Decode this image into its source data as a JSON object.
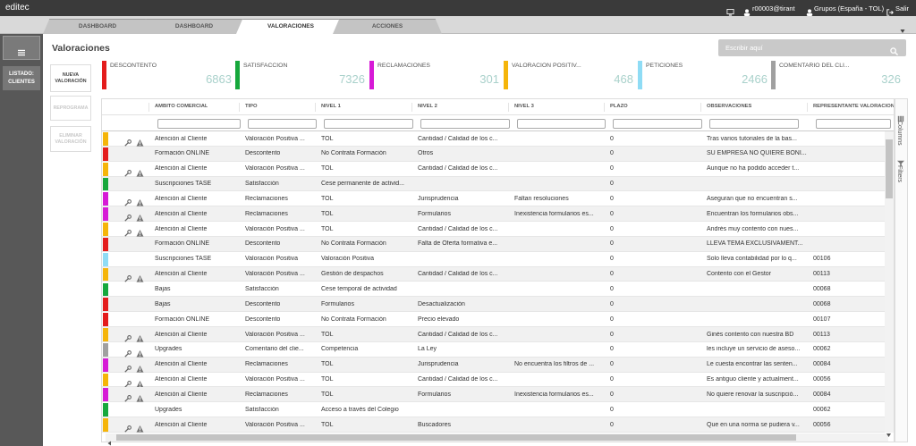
{
  "topbar": {
    "brand": "editec",
    "user": "r00003@tirant",
    "group": "Grupos (España - TOL)",
    "logout": "Salir"
  },
  "tabs": [
    {
      "label": "DASHBOARD",
      "active": false
    },
    {
      "label": "DASHBOARD",
      "active": false
    },
    {
      "label": "VALORACIONES",
      "active": true
    },
    {
      "label": "ACCIONES",
      "active": false
    }
  ],
  "sidebar": {
    "listado": "LISTADO: CLIENTES"
  },
  "page": {
    "title": "Valoraciones",
    "search_placeholder": "Escribir aquí"
  },
  "buttons": [
    {
      "label": "NUEVA VALORACIÓN",
      "enabled": true
    },
    {
      "label": "REPROGRAMA",
      "enabled": false
    },
    {
      "label": "ELIMINAR VALORACIÓN",
      "enabled": false
    }
  ],
  "cards": [
    {
      "label": "DESCONTENTO",
      "value": 6863,
      "color": "#e41c1c"
    },
    {
      "label": "SATISFACCIÓN",
      "value": 7326,
      "color": "#16a83c"
    },
    {
      "label": "RECLAMACIONES",
      "value": 301,
      "color": "#d61ad6"
    },
    {
      "label": "VALORACIÓN POSITIV...",
      "value": 468,
      "color": "#f5b50a"
    },
    {
      "label": "PETICIONES",
      "value": 2466,
      "color": "#8fdcf5"
    },
    {
      "label": "COMENTARIO DEL CLI...",
      "value": 326,
      "color": "#a0a0a0"
    }
  ],
  "table": {
    "columns": [
      "ÁMBITO COMERCIAL",
      "TIPO",
      "NIVEL 1",
      "NIVEL 2",
      "NIVEL 3",
      "PLAZO",
      "OBSERVACIONES",
      "REPRESENTANTE VALORACIÓN"
    ],
    "rows": [
      {
        "color": "#f5b50a",
        "actions": true,
        "cells": [
          "Atención al Cliente",
          "Valoración Positiva ...",
          "TOL",
          "Cantidad / Calidad de los c...",
          null,
          "0",
          "Tras varios tutoriales de la bas...",
          null
        ]
      },
      {
        "color": "#e41c1c",
        "actions": false,
        "cells": [
          "Formación ONLINE",
          "Descontento",
          "No Contrata Formación",
          "Otros",
          null,
          "0",
          "SU EMPRESA NO QUIERE BONI...",
          null
        ]
      },
      {
        "color": "#f5b50a",
        "actions": true,
        "cells": [
          "Atención al Cliente",
          "Valoración Positiva ...",
          "TOL",
          "Cantidad / Calidad de los c...",
          null,
          "0",
          "Aunque no ha podido acceder t...",
          null
        ]
      },
      {
        "color": "#16a83c",
        "actions": false,
        "cells": [
          "Suscripciones TASE",
          "Satisfacción",
          "Cese permanente de activid...",
          null,
          null,
          "0",
          null,
          null
        ]
      },
      {
        "color": "#d61ad6",
        "actions": true,
        "cells": [
          "Atención al Cliente",
          "Reclamaciones",
          "TOL",
          "Jurisprudencia",
          "Faltan resoluciones",
          "0",
          "Aseguran que no encuentran s...",
          null
        ]
      },
      {
        "color": "#d61ad6",
        "actions": true,
        "cells": [
          "Atención al Cliente",
          "Reclamaciones",
          "TOL",
          "Formularios",
          "Inexistencia formularios es...",
          "0",
          "Encuentran los formularios obs...",
          null
        ]
      },
      {
        "color": "#f5b50a",
        "actions": true,
        "cells": [
          "Atención al Cliente",
          "Valoración Positiva ...",
          "TOL",
          "Cantidad / Calidad de los c...",
          null,
          "0",
          "Andrés muy contento con nues...",
          null
        ]
      },
      {
        "color": "#e41c1c",
        "actions": false,
        "cells": [
          "Formación ONLINE",
          "Descontento",
          "No Contrata Formación",
          "Falta de Oferta formativa e...",
          null,
          "0",
          "LLEVA TEMA EXCLUSIVAMENT...",
          null
        ]
      },
      {
        "color": "#8fdcf5",
        "actions": false,
        "cells": [
          "Suscripciones TASE",
          "Valoración Positiva",
          "Valoración Positiva",
          null,
          null,
          "0",
          "Solo lleva contabilidad por lo q...",
          "00106"
        ]
      },
      {
        "color": "#f5b50a",
        "actions": true,
        "cells": [
          "Atención al Cliente",
          "Valoración Positiva ...",
          "Gestión de despachos",
          "Cantidad / Calidad de los c...",
          null,
          "0",
          "Contento con el Gestor",
          "00113"
        ]
      },
      {
        "color": "#16a83c",
        "actions": false,
        "cells": [
          "Bajas",
          "Satisfacción",
          "Cese temporal de actividad",
          null,
          null,
          "0",
          null,
          "00068"
        ]
      },
      {
        "color": "#e41c1c",
        "actions": false,
        "cells": [
          "Bajas",
          "Descontento",
          "Formularios",
          "Desactualización",
          null,
          "0",
          null,
          "00068"
        ]
      },
      {
        "color": "#e41c1c",
        "actions": false,
        "cells": [
          "Formación ONLINE",
          "Descontento",
          "No Contrata Formación",
          "Precio elevado",
          null,
          "0",
          null,
          "00107"
        ]
      },
      {
        "color": "#f5b50a",
        "actions": true,
        "cells": [
          "Atención al Cliente",
          "Valoración Positiva ...",
          "TOL",
          "Cantidad / Calidad de los c...",
          null,
          "0",
          "Ginés contento con nuestra BD",
          "00113"
        ]
      },
      {
        "color": "#a0a0a0",
        "actions": true,
        "cells": [
          "Upgrades",
          "Comentario del clie...",
          "Competencia",
          "La Ley",
          null,
          "0",
          "les incluye un servicio de aseso...",
          "00062"
        ]
      },
      {
        "color": "#d61ad6",
        "actions": true,
        "cells": [
          "Atención al Cliente",
          "Reclamaciones",
          "TOL",
          "Jurisprudencia",
          "No encuentra los filtros de ...",
          "0",
          "Le cuesta encontrar las senten...",
          "00084"
        ]
      },
      {
        "color": "#f5b50a",
        "actions": true,
        "cells": [
          "Atención al Cliente",
          "Valoración Positiva ...",
          "TOL",
          "Cantidad / Calidad de los c...",
          null,
          "0",
          "Es antiguo cliente y actualment...",
          "00056"
        ]
      },
      {
        "color": "#d61ad6",
        "actions": true,
        "cells": [
          "Atención al Cliente",
          "Reclamaciones",
          "TOL",
          "Formularios",
          "Inexistencia formularios es...",
          "0",
          "No quiere renovar la suscripció...",
          "00084"
        ]
      },
      {
        "color": "#16a83c",
        "actions": false,
        "cells": [
          "Upgrades",
          "Satisfacción",
          "Acceso a través del Colegio",
          null,
          null,
          "0",
          null,
          "00062"
        ]
      },
      {
        "color": "#f5b50a",
        "actions": true,
        "cells": [
          "Atención al Cliente",
          "Valoración Positiva ...",
          "TOL",
          "Buscadores",
          null,
          "0",
          "Que en una norma se pudiera v...",
          "00056"
        ]
      }
    ]
  },
  "side_panel": [
    "Columns",
    "Filters"
  ]
}
